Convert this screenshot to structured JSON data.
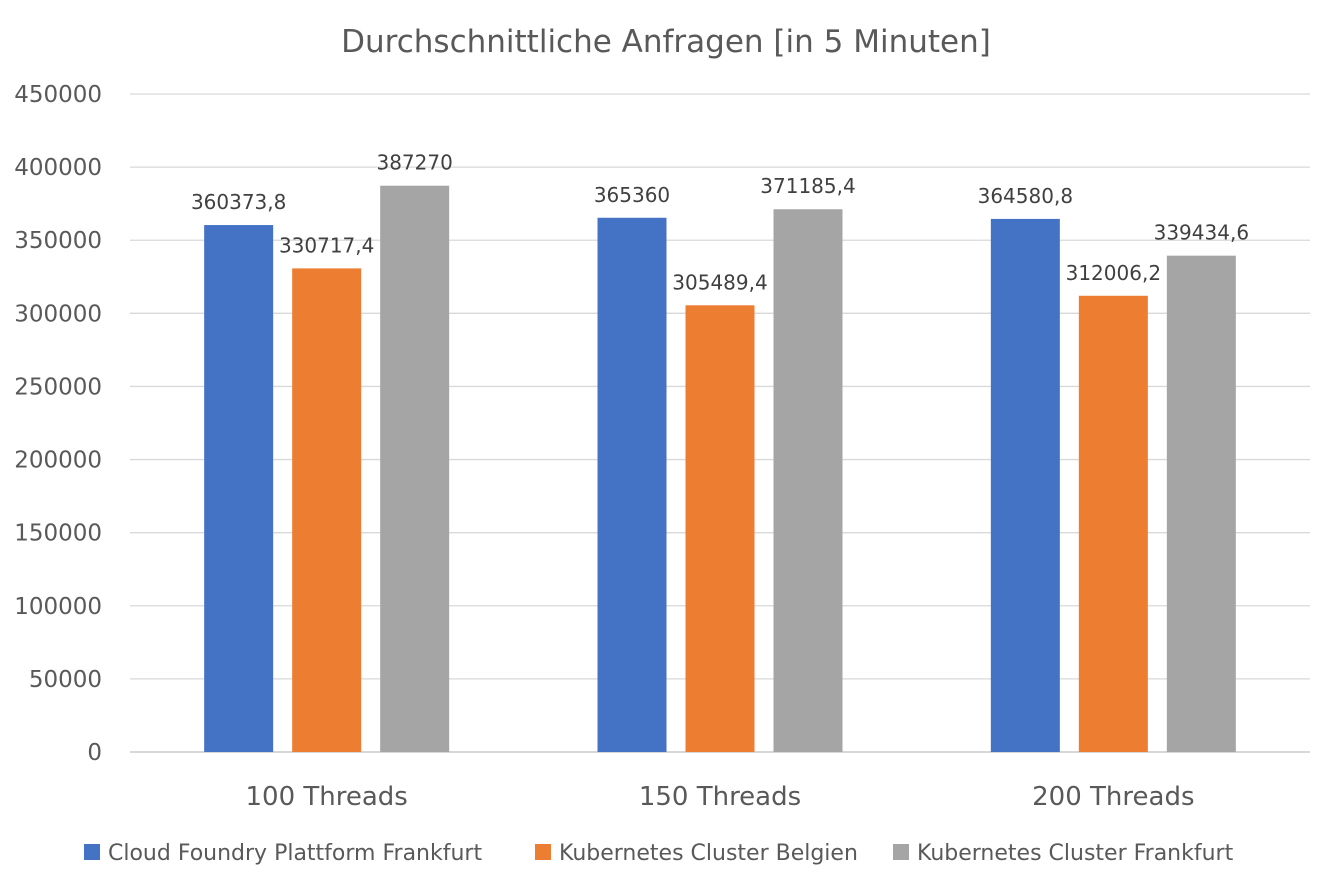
{
  "chart_data": {
    "type": "bar",
    "title": "Durchschnittliche Anfragen [in 5 Minuten]",
    "xlabel": "",
    "ylabel": "",
    "categories": [
      "100 Threads",
      "150 Threads",
      "200 Threads"
    ],
    "ylim": [
      0,
      450000
    ],
    "yticks": [
      "0",
      "50000",
      "100000",
      "150000",
      "200000",
      "250000",
      "300000",
      "350000",
      "400000",
      "450000"
    ],
    "grid": true,
    "legend_position": "bottom",
    "series": [
      {
        "name": "Cloud Foundry Plattform Frankfurt",
        "color": "#4472C4",
        "values": [
          360373.8,
          365360,
          364580.8
        ],
        "labels": [
          "360373,8",
          "365360",
          "364580,8"
        ]
      },
      {
        "name": "Kubernetes Cluster Belgien",
        "color": "#ED7D31",
        "values": [
          330717.4,
          305489.4,
          312006.2
        ],
        "labels": [
          "330717,4",
          "305489,4",
          "312006,2"
        ]
      },
      {
        "name": "Kubernetes Cluster Frankfurt",
        "color": "#A5A5A5",
        "values": [
          387270,
          371185.4,
          339434.6
        ],
        "labels": [
          "387270",
          "371185,4",
          "339434,6"
        ]
      }
    ]
  }
}
